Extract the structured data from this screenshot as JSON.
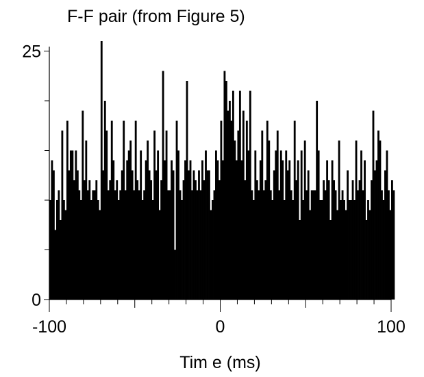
{
  "chart_data": {
    "type": "bar",
    "title": "F-F pair (from Figure 5)",
    "xlabel": "Tim e (ms)",
    "ylabel": "",
    "xlim": [
      -100,
      100
    ],
    "ylim": [
      0,
      26
    ],
    "x_ticks": [
      -100,
      0,
      100
    ],
    "x_tick_labels": [
      "-100",
      "0",
      "100"
    ],
    "y_ticks": [
      0,
      25
    ],
    "y_tick_labels": [
      "0",
      "25"
    ],
    "y_minor_ticks": [
      5,
      10,
      15,
      20
    ],
    "x_minor_step": 10,
    "bin_width_ms": 1,
    "grid": false,
    "bar_color": "#000000",
    "bins_start": -100,
    "values": [
      10,
      14,
      13,
      7,
      10,
      11,
      8,
      17,
      10,
      9,
      18,
      13,
      15,
      15,
      12,
      15,
      13,
      11,
      10,
      19,
      12,
      16,
      11,
      12,
      10,
      11,
      11,
      12,
      10,
      9,
      26,
      13,
      20,
      17,
      11,
      12,
      18,
      14,
      11,
      12,
      10,
      11,
      13,
      18,
      11,
      14,
      15,
      16,
      13,
      11,
      18,
      12,
      11,
      15,
      10,
      11,
      14,
      16,
      13,
      12,
      10,
      17,
      13,
      15,
      9,
      12,
      23,
      14,
      17,
      11,
      11,
      14,
      13,
      5,
      18,
      15,
      11,
      10,
      12,
      14,
      22,
      13,
      14,
      11,
      13,
      12,
      11,
      13,
      11,
      14,
      12,
      15,
      13,
      13,
      9,
      10,
      11,
      15,
      14,
      12,
      18,
      14,
      23,
      22,
      19,
      20,
      18,
      21,
      16,
      14,
      17,
      21,
      14,
      19,
      12,
      18,
      15,
      21,
      11,
      10,
      15,
      12,
      11,
      14,
      17,
      11,
      12,
      18,
      16,
      11,
      10,
      13,
      15,
      17,
      11,
      15,
      14,
      10,
      15,
      13,
      14,
      11,
      10,
      18,
      12,
      14,
      8,
      15,
      10,
      16,
      11,
      13,
      9,
      11,
      11,
      11,
      20,
      15,
      10,
      10,
      12,
      11,
      14,
      12,
      8,
      14,
      12,
      11,
      9,
      16,
      10,
      11,
      10,
      9,
      13,
      10,
      10,
      12,
      10,
      16,
      11,
      12,
      15,
      11,
      14,
      8,
      10,
      9,
      12,
      19,
      13,
      14,
      17,
      16,
      11,
      10,
      13,
      15,
      11,
      9,
      12,
      11
    ]
  }
}
